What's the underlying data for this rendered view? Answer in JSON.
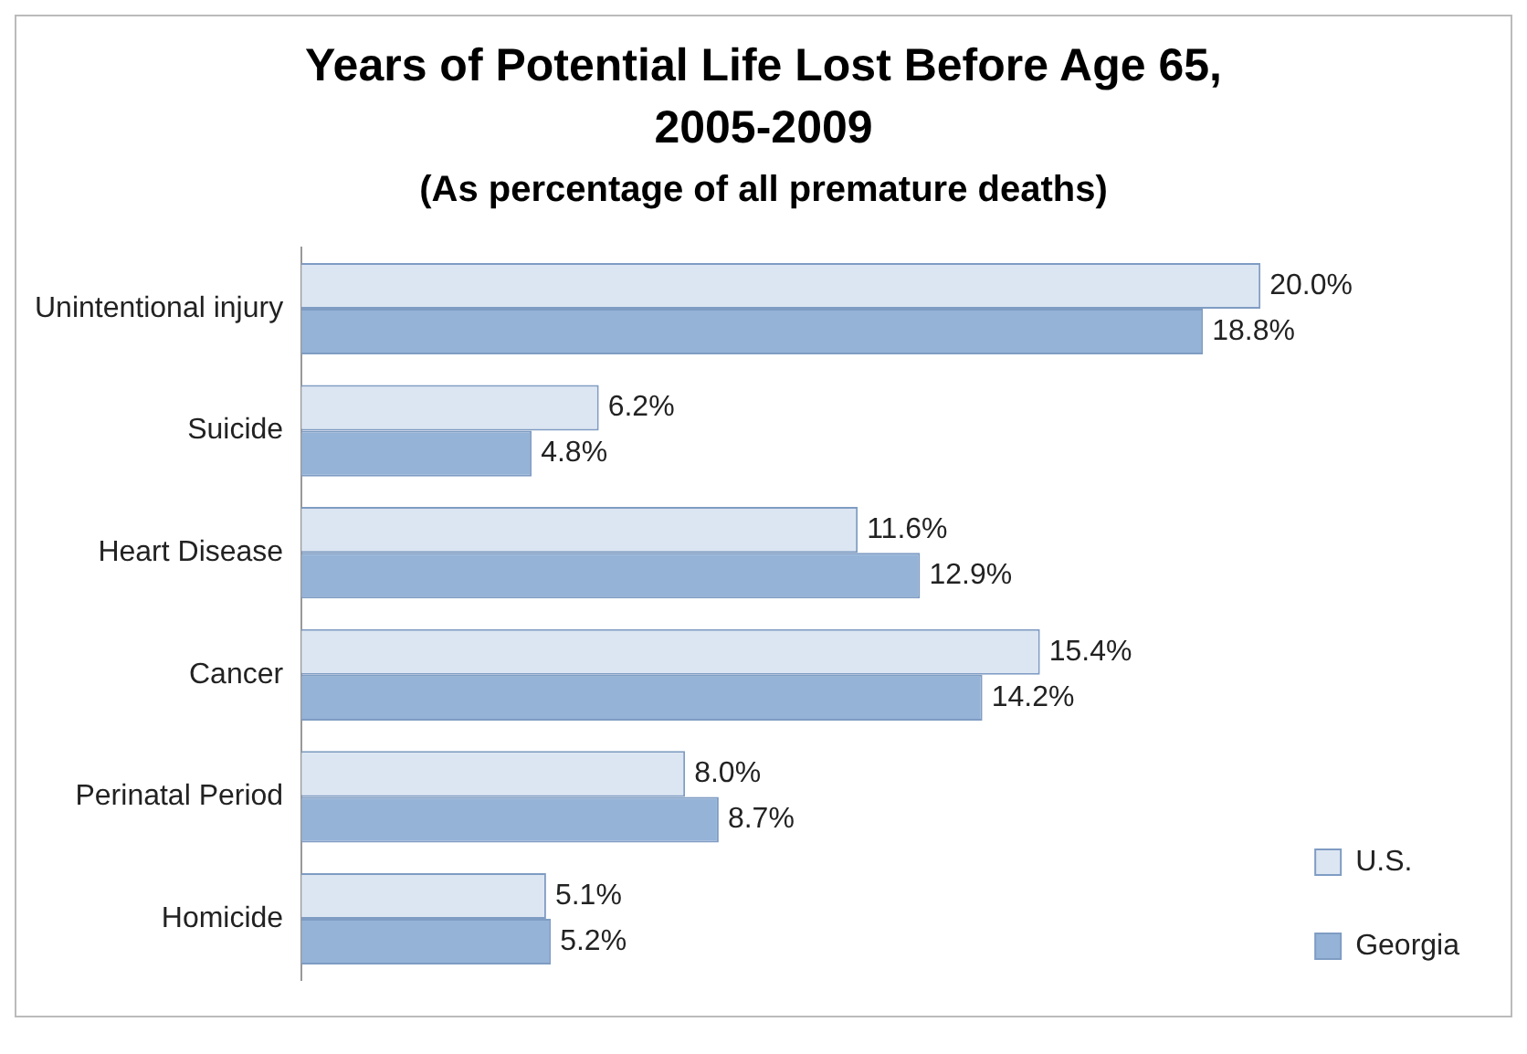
{
  "chart_data": {
    "type": "bar",
    "orientation": "horizontal",
    "title": "Years of Potential Life Lost Before Age 65, 2005-2009",
    "subtitle": "(As percentage of all premature deaths)",
    "categories": [
      "Unintentional injury",
      "Suicide",
      "Heart Disease",
      "Cancer",
      "Perinatal Period",
      "Homicide"
    ],
    "legend": "right",
    "series": [
      {
        "name": "U.S.",
        "color": "#dce6f2",
        "values": [
          20.0,
          6.2,
          11.6,
          15.4,
          8.0,
          5.1
        ],
        "value_labels": [
          "20.0%",
          "6.2%",
          "11.6%",
          "15.4%",
          "8.0%",
          "5.1%"
        ]
      },
      {
        "name": "Georgia",
        "color": "#95b3d7",
        "values": [
          18.8,
          4.8,
          12.9,
          14.2,
          8.7,
          5.2
        ],
        "value_labels": [
          "18.8%",
          "4.8%",
          "12.9%",
          "14.2%",
          "8.7%",
          "5.2%"
        ]
      }
    ]
  }
}
